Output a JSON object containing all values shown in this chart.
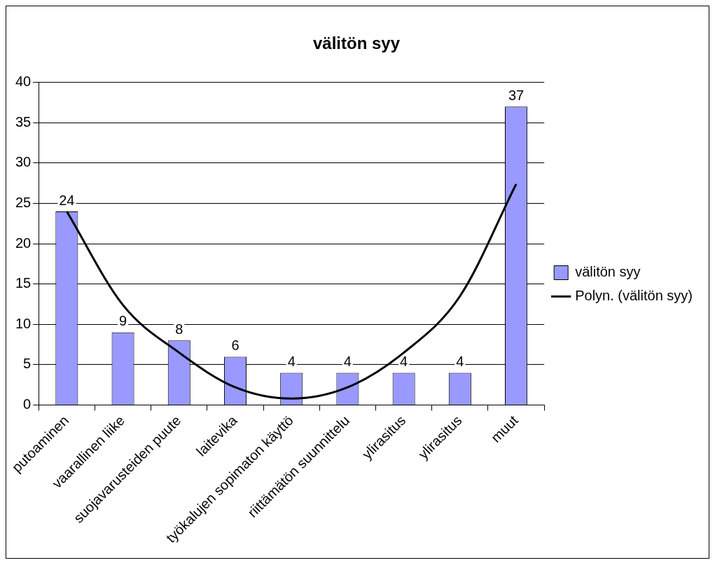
{
  "chart_data": {
    "type": "bar",
    "title": "välitön syy",
    "categories": [
      "putoaminen",
      "vaarallinen liike",
      "suojavarusteiden puute",
      "laitevika",
      "työkalujen sopimaton käyttö",
      "riittämätön suunnittelu",
      "ylirasitus",
      "ylirasitus",
      "muut"
    ],
    "series": [
      {
        "name": "välitön syy",
        "color": "#9999ff",
        "values": [
          24,
          9,
          8,
          6,
          4,
          4,
          4,
          4,
          37
        ],
        "value_labels": [
          "24",
          "9",
          "8",
          "6",
          "4",
          "4",
          "4",
          "4",
          "37"
        ]
      },
      {
        "name": "Polyn. (välitön syy)",
        "type": "line",
        "color": "#000000",
        "values": [
          24,
          12.4,
          6.5,
          2.2,
          0.8,
          2.2,
          6.5,
          13.5,
          27.4
        ]
      }
    ],
    "ylim": [
      0,
      40
    ],
    "yticks": [
      0,
      5,
      10,
      15,
      20,
      25,
      30,
      35,
      40
    ],
    "grid": "y",
    "legend": "right",
    "marker": "none"
  }
}
